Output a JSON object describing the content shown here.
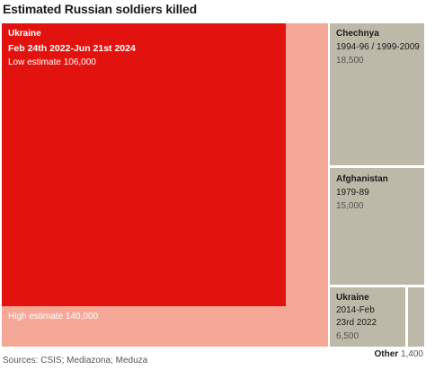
{
  "title": "Estimated Russian soldiers killed",
  "source": "Sources: CSIS; Mediazona; Meduza",
  "colors": {
    "ukraine_low": "#e2130f",
    "ukraine_high": "#f5a898",
    "historic": "#bcb9a8",
    "text_light": "#ffffff",
    "text_dark": "#1a1a1a"
  },
  "chart_data": {
    "type": "treemap",
    "title": "Estimated Russian soldiers killed",
    "items": [
      {
        "name": "Ukraine",
        "period": "Feb 24th 2022-Jun 21st 2024",
        "low_label": "Low estimate 106,000",
        "high_label": "High estimate 140,000",
        "low": 106000,
        "high": 140000
      },
      {
        "name": "Chechnya",
        "period": "1994-96 / 1999-2009",
        "value_label": "18,500",
        "value": 18500
      },
      {
        "name": "Afghanistan",
        "period": "1979-89",
        "value_label": "15,000",
        "value": 15000
      },
      {
        "name": "Ukraine",
        "period_line1": "2014-Feb",
        "period_line2": "23rd 2022",
        "value_label": "6,500",
        "value": 6500
      },
      {
        "name": "Other",
        "value_label": "1,400",
        "value": 1400
      }
    ]
  }
}
